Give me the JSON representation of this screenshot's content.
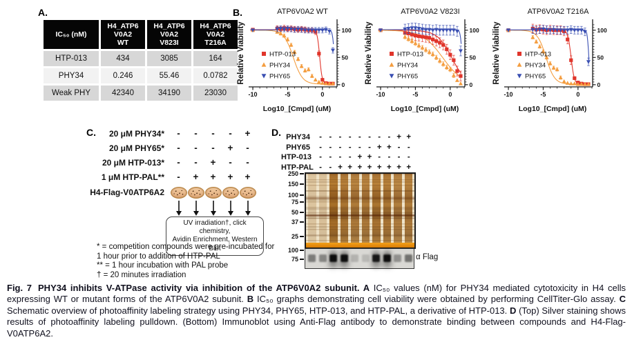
{
  "panelA": {
    "label": "A.",
    "table": {
      "headers": [
        "IC₅₀ (nM)",
        "H4_ATP6\nV0A2\nWT",
        "H4_ATP6\nV0A2\nV823I",
        "H4_ATP6\nV0A2\nT216A"
      ],
      "rows": [
        {
          "name": "HTP-013",
          "values": [
            "434",
            "3085",
            "164"
          ]
        },
        {
          "name": "PHY34",
          "values": [
            "0.246",
            "55.46",
            "0.0782"
          ]
        },
        {
          "name": "Weak PHY",
          "values": [
            "42340",
            "34190",
            "23030"
          ]
        }
      ]
    }
  },
  "panelB": {
    "label": "B."
  },
  "chart_data": [
    {
      "type": "line",
      "title": "ATP6V0A2 WT",
      "xlabel": "Log10_[Cmpd] (uM)",
      "ylabel": "Relative Viability",
      "xlim": [
        -10.6,
        2.1
      ],
      "ylim": [
        -4,
        120
      ],
      "xticks": [
        -10,
        -5,
        0
      ],
      "yticks": [
        0,
        50,
        100
      ],
      "legend_position": "left-center",
      "x": [
        -10,
        -6.5,
        -6,
        -5.5,
        -5,
        -4.5,
        -4,
        -3.5,
        -3,
        -2.5,
        -2,
        -1.5,
        -1,
        -0.5,
        0,
        0.5,
        1,
        1.5
      ],
      "series": [
        {
          "name": "HTP-013",
          "color": "#e0352b",
          "marker": "square",
          "err": 5,
          "values": [
            101,
            103,
            102,
            104,
            102,
            103,
            102,
            101,
            102,
            101,
            100,
            100,
            97,
            57,
            9,
            3,
            2,
            2
          ],
          "fit": {
            "logec50": -0.4,
            "hill": 2.4,
            "top": 101,
            "bottom": 2
          }
        },
        {
          "name": "PHY34",
          "color": "#f49d3f",
          "marker": "triangle-up",
          "err": 3,
          "values": [
            100,
            97,
            94,
            90,
            83,
            73,
            60,
            47,
            34,
            26,
            28,
            16,
            9,
            5,
            3,
            2,
            2,
            2
          ],
          "fit": {
            "logec50": -4.2,
            "hill": 0.65,
            "top": 100,
            "bottom": 1
          }
        },
        {
          "name": "PHY65",
          "color": "#3a4fb2",
          "marker": "triangle-down",
          "err": 5,
          "values": [
            100,
            102,
            103,
            102,
            103,
            102,
            101,
            102,
            101,
            100,
            100,
            100,
            100,
            100,
            100,
            101,
            98,
            63
          ],
          "fit": {
            "logec50": 1.7,
            "hill": 3.5,
            "top": 100.5,
            "bottom": 0
          }
        }
      ]
    },
    {
      "type": "line",
      "title": "ATP6V0A2 V823I",
      "xlabel": "Log10_[Cmpd] (uM)",
      "ylabel": "Relative Viability",
      "xlim": [
        -10.6,
        2.1
      ],
      "ylim": [
        -4,
        120
      ],
      "xticks": [
        -10,
        -5,
        0
      ],
      "yticks": [
        0,
        50,
        100
      ],
      "legend_position": "left-center",
      "x": [
        -10,
        -6.5,
        -6,
        -5.5,
        -5,
        -4.5,
        -4,
        -3.5,
        -3,
        -2.5,
        -2,
        -1.5,
        -1,
        -0.5,
        0,
        0.5,
        1,
        1.5
      ],
      "series": [
        {
          "name": "HTP-013",
          "color": "#e0352b",
          "marker": "square",
          "err": 9,
          "values": [
            100,
            95,
            94,
            92,
            90,
            89,
            88,
            87,
            86,
            83,
            80,
            77,
            73,
            65,
            55,
            45,
            25,
            16
          ],
          "fit": {
            "logec50": 0.2,
            "hill": 0.42,
            "top": 100,
            "bottom": 0
          }
        },
        {
          "name": "PHY34",
          "color": "#f49d3f",
          "marker": "triangle-up",
          "err": 4,
          "values": [
            100,
            88,
            84,
            80,
            76,
            72,
            68,
            64,
            60,
            56,
            50,
            44,
            38,
            32,
            28,
            17,
            8,
            2
          ],
          "fit": {
            "logec50": -1.1,
            "hill": 0.3,
            "top": 100,
            "bottom": 0
          }
        },
        {
          "name": "PHY65",
          "color": "#3a4fb2",
          "marker": "triangle-down",
          "err": 9,
          "values": [
            100,
            102,
            103,
            104,
            104,
            103,
            102,
            101,
            101,
            100,
            101,
            100,
            100,
            100,
            100,
            100,
            98,
            62
          ],
          "fit": {
            "logec50": 1.7,
            "hill": 3.5,
            "top": 101,
            "bottom": 0
          }
        }
      ]
    },
    {
      "type": "line",
      "title": "ATP6V0A2 T216A",
      "xlabel": "Log10_[Cmpd] (uM)",
      "ylabel": "Relative Viability",
      "xlim": [
        -10.6,
        2.1
      ],
      "ylim": [
        -4,
        120
      ],
      "xticks": [
        -10,
        -5,
        0
      ],
      "yticks": [
        0,
        50,
        100
      ],
      "legend_position": "left-center",
      "x": [
        -10,
        -6.5,
        -6,
        -5.5,
        -5,
        -4.5,
        -4,
        -3.5,
        -3,
        -2.5,
        -2,
        -1.5,
        -1,
        -0.5,
        0,
        0.5,
        1,
        1.5
      ],
      "series": [
        {
          "name": "HTP-013",
          "color": "#e0352b",
          "marker": "square",
          "err": 8,
          "values": [
            100,
            103,
            101,
            102,
            101,
            100,
            101,
            100,
            100,
            100,
            98,
            83,
            45,
            12,
            4,
            2,
            1,
            1
          ],
          "fit": {
            "logec50": -1.0,
            "hill": 1.9,
            "top": 100.5,
            "bottom": 1
          }
        },
        {
          "name": "PHY34",
          "color": "#f49d3f",
          "marker": "triangle-up",
          "err": 3,
          "values": [
            100,
            87,
            79,
            70,
            61,
            50,
            39,
            31,
            28,
            13,
            6,
            3,
            2,
            2,
            1,
            1,
            1,
            1
          ],
          "fit": {
            "logec50": -4.6,
            "hill": 0.7,
            "top": 100,
            "bottom": 1
          }
        },
        {
          "name": "PHY65",
          "color": "#3a4fb2",
          "marker": "triangle-down",
          "err": 7,
          "values": [
            100,
            101,
            100,
            101,
            102,
            101,
            100,
            101,
            100,
            100,
            100,
            100,
            101,
            100,
            100,
            100,
            97,
            42
          ],
          "fit": {
            "logec50": 1.55,
            "hill": 4,
            "top": 100.5,
            "bottom": 0
          }
        }
      ]
    }
  ],
  "panelC": {
    "label": "C.",
    "rows": [
      {
        "label": "20 μM PHY34*",
        "signs": [
          "-",
          "-",
          "-",
          "-",
          "+"
        ]
      },
      {
        "label": "20 μM PHY65*",
        "signs": [
          "-",
          "-",
          "-",
          "+",
          "-"
        ]
      },
      {
        "label": "20 μM HTP-013*",
        "signs": [
          "-",
          "-",
          "+",
          "-",
          "-"
        ]
      },
      {
        "label": "1 μM HTP-PAL**",
        "signs": [
          "-",
          "+",
          "+",
          "+",
          "+"
        ]
      }
    ],
    "cells_label": "H4-Flag-V0ATP6A2",
    "dish_count": 5,
    "box_lines": [
      "UV irradiation†, click chemistry,",
      "Avidin Enrichment, Western Blot"
    ],
    "footnotes": [
      "* = competition compounds were pre-incubated  for",
      "1 hour prior to addition of HTP-PAL",
      "** = 1 hour incubation with PAL probe",
      "† = 20 minutes irradiation"
    ]
  },
  "panelD": {
    "label": "D.",
    "rows": [
      {
        "label": "PHY34",
        "signs": [
          "-",
          "-",
          "-",
          "-",
          "-",
          "-",
          "-",
          "-",
          "+",
          "+"
        ]
      },
      {
        "label": "PHY65",
        "signs": [
          "-",
          "-",
          "-",
          "-",
          "-",
          "-",
          "+",
          "+",
          "-",
          "-"
        ]
      },
      {
        "label": "HTP-013",
        "signs": [
          "-",
          "-",
          "-",
          "-",
          "+",
          "+",
          "-",
          "-",
          "-",
          "-"
        ]
      },
      {
        "label": "HTP-PAL",
        "signs": [
          "-",
          "-",
          "+",
          "+",
          "+",
          "+",
          "+",
          "+",
          "+",
          "+"
        ]
      }
    ],
    "silver_markers": [
      {
        "label": "250",
        "pos": 0.02
      },
      {
        "label": "150",
        "pos": 0.155
      },
      {
        "label": "100",
        "pos": 0.31
      },
      {
        "label": "75",
        "pos": 0.4
      },
      {
        "label": "50",
        "pos": 0.54
      },
      {
        "label": "37",
        "pos": 0.67
      },
      {
        "label": "25",
        "pos": 0.87
      }
    ],
    "blot_markers": [
      {
        "label": "100",
        "pos": 0.12
      },
      {
        "label": "75",
        "pos": 0.56
      }
    ],
    "blot_antibody": "α Flag",
    "silver_lanes": [
      0.25,
      0.28,
      0.95,
      0.9,
      0.85,
      0.85,
      0.9,
      0.88,
      0.82,
      0.85
    ],
    "blot_bands": [
      0.45,
      0.4,
      1,
      1,
      0.18,
      0.15,
      0.95,
      1,
      0.35,
      0.5
    ]
  },
  "caption": {
    "fig_label": "Fig. 7",
    "title": "PHY34 inhibits V-ATPase activity via inhibition of the ATP6V0A2 subunit. ",
    "a": "A",
    "a_text": " IC₅₀ values (nM) for PHY34 mediated cytotoxicity in H4 cells expressing WT or mutant forms of the ATP6V0A2 subunit. ",
    "b": "B",
    "b_text": " IC₅₀ graphs demonstrating cell viability were obtained by performing CellTiter-Glo assay. ",
    "c": "C",
    "c_text": " Schematic overview of photoaffinity labeling strategy using PHY34, PHY65, HTP-013, and HTP-PAL, a derivative of HTP-013. ",
    "d": "D",
    "d_text": " (Top) Silver staining shows results of photoaffinity labeling pulldown. (Bottom) Immunoblot using Anti-Flag antibody to demonstrate binding between compounds and H4-Flag-V0ATP6A2."
  }
}
